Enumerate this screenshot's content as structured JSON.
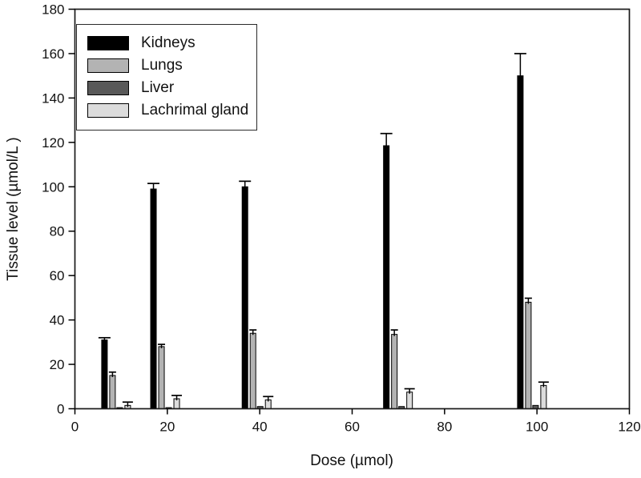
{
  "figure": {
    "background": "#ffffff",
    "frame_color": "#1a1a1a"
  },
  "chart_data": {
    "type": "bar",
    "title": "",
    "xlabel": "Dose (µmol)",
    "ylabel": "Tissue level (µmol/L )",
    "xlim": [
      0,
      120
    ],
    "ylim": [
      0,
      180
    ],
    "x_ticks": [
      0,
      20,
      40,
      60,
      80,
      100,
      120
    ],
    "y_ticks": [
      0,
      20,
      40,
      60,
      80,
      100,
      120,
      140,
      160,
      180
    ],
    "grid": false,
    "error_bars": true,
    "legend_position": "upper-left-inside",
    "doses": [
      10,
      20,
      40,
      70,
      100
    ],
    "group_center_x": [
      9,
      19.6,
      39.4,
      70,
      99
    ],
    "series": [
      {
        "name": "Kidneys",
        "color": "#000000",
        "values": [
          31,
          99,
          100,
          118.5,
          150
        ],
        "errors": [
          1,
          2.5,
          2.5,
          5.5,
          10
        ]
      },
      {
        "name": "Lungs",
        "color": "#b3b3b3",
        "values": [
          15,
          28,
          34,
          33.5,
          48
        ],
        "errors": [
          1.5,
          1,
          1.5,
          2,
          1.8
        ]
      },
      {
        "name": "Liver",
        "color": "#595959",
        "values": [
          0.5,
          0.5,
          1,
          1,
          1.5
        ],
        "errors": [
          0,
          0,
          0,
          0,
          0
        ]
      },
      {
        "name": "Lachrimal gland",
        "color": "#dcdcdc",
        "values": [
          1.5,
          4.5,
          4,
          7.5,
          10.5
        ],
        "errors": [
          1.5,
          1.5,
          1.5,
          1.5,
          1.5
        ]
      }
    ]
  }
}
